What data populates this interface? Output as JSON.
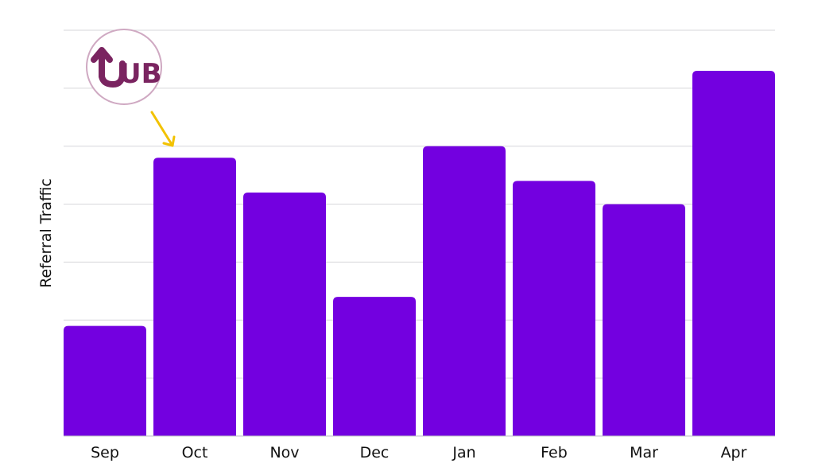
{
  "chart_data": {
    "type": "bar",
    "categories": [
      "Sep",
      "Oct",
      "Nov",
      "Dec",
      "Jan",
      "Feb",
      "Mar",
      "Apr"
    ],
    "values": [
      19,
      48,
      42,
      24,
      50,
      44,
      40,
      63
    ],
    "title": "",
    "xlabel": "",
    "ylabel": "Referral Traffic",
    "ylim": [
      0,
      70
    ],
    "grid": true,
    "bar_color": "#7300E0",
    "grid_color": "#D6D6DA"
  },
  "logo": {
    "text": "UB",
    "color": "#7A2460",
    "ring_color": "#CFA9C2"
  },
  "annotation": {
    "type": "arrow",
    "target": "Oct",
    "color": "#F2C200"
  }
}
